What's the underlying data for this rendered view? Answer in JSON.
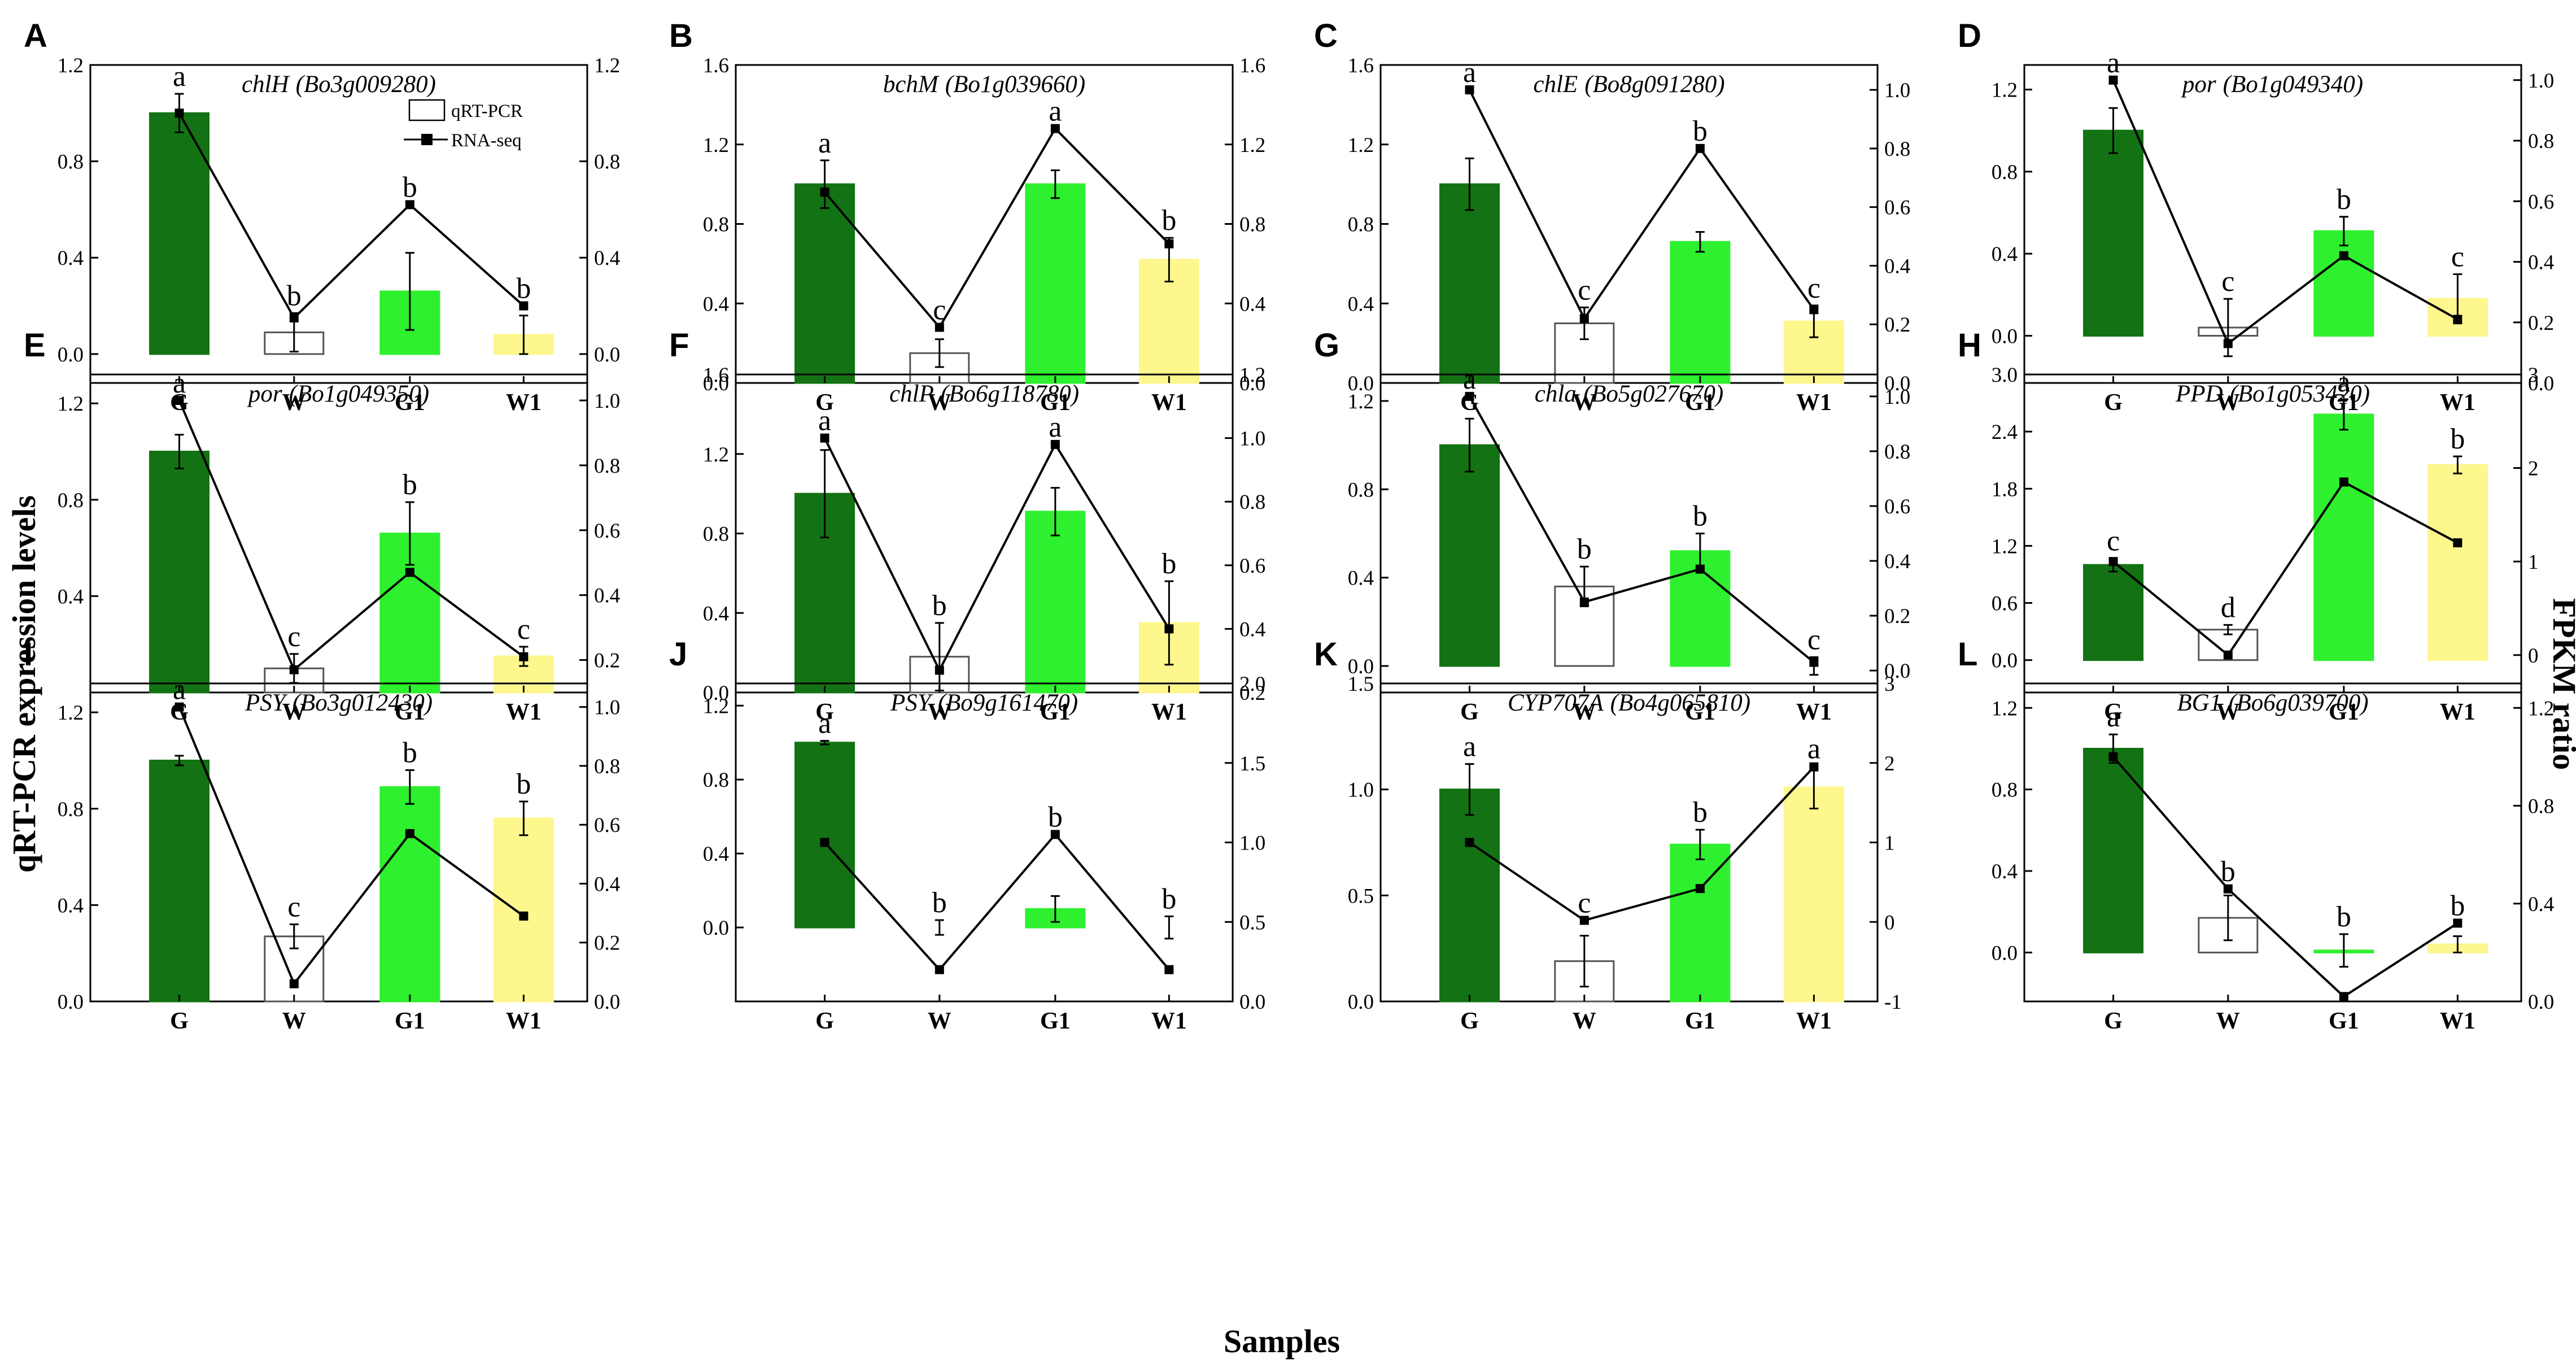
{
  "figure": {
    "shared_ylabel_left": "qRT-PCR expression levels",
    "shared_ylabel_right": "FPKM ratio",
    "shared_xlabel": "Samples",
    "legend": {
      "bar_label": "qRT-PCR",
      "line_label": "RNA-seq"
    },
    "colors": {
      "G": "#137213",
      "W": "#ffffff",
      "G1": "#2ef02e",
      "W1": "#fdf78e"
    }
  },
  "chart_data": [
    {
      "type": "bar",
      "panel": "A",
      "gene": "chlH",
      "gene_id": "(Bo3g009280)",
      "categories": [
        "G",
        "W",
        "G1",
        "W1"
      ],
      "series": [
        {
          "name": "qRT-PCR",
          "values": [
            1.0,
            0.09,
            0.26,
            0.08
          ],
          "errors": [
            0.08,
            0.08,
            0.16,
            0.08
          ],
          "axis": "left"
        },
        {
          "name": "RNA-seq",
          "type": "line",
          "values": [
            1.0,
            0.15,
            0.62,
            0.2
          ],
          "axis": "right"
        }
      ],
      "significance": [
        "a",
        "b",
        "b",
        "b"
      ],
      "ylim_left": [
        -0.12,
        1.2
      ],
      "yticks_left": [
        0.0,
        0.4,
        0.8,
        1.2
      ],
      "yticklabels_left": [
        "0.0",
        "0.4",
        "0.8",
        "1.2"
      ],
      "ylim_right": [
        -0.12,
        1.2
      ],
      "yticks_right": [
        0.0,
        0.4,
        0.8,
        1.2
      ],
      "yticklabels_right": [
        "0.0",
        "0.4",
        "0.8",
        "1.2"
      ],
      "show_legend": true
    },
    {
      "type": "bar",
      "panel": "B",
      "gene": "bchM",
      "gene_id": "(Bo1g039660)",
      "categories": [
        "G",
        "W",
        "G1",
        "W1"
      ],
      "series": [
        {
          "name": "qRT-PCR",
          "values": [
            1.0,
            0.15,
            1.0,
            0.62
          ],
          "errors": [
            0.12,
            0.07,
            0.07,
            0.11
          ],
          "axis": "left"
        },
        {
          "name": "RNA-seq",
          "type": "line",
          "values": [
            0.96,
            0.28,
            1.28,
            0.7
          ],
          "axis": "right"
        }
      ],
      "significance": [
        "a",
        "c",
        "a",
        "b"
      ],
      "ylim_left": [
        0,
        1.6
      ],
      "yticks_left": [
        0.0,
        0.4,
        0.8,
        1.2,
        1.6
      ],
      "yticklabels_left": [
        "0.0",
        "0.4",
        "0.8",
        "1.2",
        "1.6"
      ],
      "ylim_right": [
        0,
        1.6
      ],
      "yticks_right": [
        0.0,
        0.4,
        0.8,
        1.2,
        1.6
      ],
      "yticklabels_right": [
        "0.0",
        "0.4",
        "0.8",
        "1.2",
        "1.6"
      ]
    },
    {
      "type": "bar",
      "panel": "C",
      "gene": "chlE",
      "gene_id": "(Bo8g091280)",
      "categories": [
        "G",
        "W",
        "G1",
        "W1"
      ],
      "series": [
        {
          "name": "qRT-PCR",
          "values": [
            1.0,
            0.3,
            0.71,
            0.31
          ],
          "errors": [
            0.13,
            0.08,
            0.05,
            0.08
          ],
          "axis": "left"
        },
        {
          "name": "RNA-seq",
          "type": "line",
          "values": [
            1.0,
            0.22,
            0.8,
            0.25
          ],
          "axis": "right"
        }
      ],
      "significance": [
        "a",
        "c",
        "b",
        "c"
      ],
      "ylim_left": [
        0,
        1.6
      ],
      "yticks_left": [
        0.0,
        0.4,
        0.8,
        1.2,
        1.6
      ],
      "yticklabels_left": [
        "0.0",
        "0.4",
        "0.8",
        "1.2",
        "1.6"
      ],
      "ylim_right": [
        0,
        1.085
      ],
      "yticks_right": [
        0.0,
        0.2,
        0.4,
        0.6,
        0.8,
        1.0
      ],
      "yticklabels_right": [
        "0.0",
        "0.2",
        "0.4",
        "0.6",
        "0.8",
        "1.0"
      ]
    },
    {
      "type": "bar",
      "panel": "D",
      "gene": "por",
      "gene_id": "(Bo1g049340)",
      "categories": [
        "G",
        "W",
        "G1",
        "W1"
      ],
      "series": [
        {
          "name": "qRT-PCR",
          "values": [
            1.0,
            0.04,
            0.51,
            0.18
          ],
          "errors": [
            0.11,
            0.14,
            0.07,
            0.12
          ],
          "axis": "left"
        },
        {
          "name": "RNA-seq",
          "type": "line",
          "values": [
            1.0,
            0.13,
            0.42,
            0.21
          ],
          "axis": "right"
        }
      ],
      "significance": [
        "a",
        "c",
        "b",
        "c"
      ],
      "ylim_left": [
        -0.23,
        1.32
      ],
      "yticks_left": [
        0.0,
        0.4,
        0.8,
        1.2
      ],
      "yticklabels_left": [
        "0.0",
        "0.4",
        "0.8",
        "1.2"
      ],
      "ylim_right": [
        0,
        1.05
      ],
      "yticks_right": [
        0.0,
        0.2,
        0.4,
        0.6,
        0.8,
        1.0
      ],
      "yticklabels_right": [
        "0.0",
        "0.2",
        "0.4",
        "0.6",
        "0.8",
        "1.0"
      ]
    },
    {
      "type": "bar",
      "panel": "E",
      "gene": "por",
      "gene_id": "(Bo1g049350)",
      "categories": [
        "G",
        "W",
        "G1",
        "W1"
      ],
      "series": [
        {
          "name": "qRT-PCR",
          "values": [
            1.0,
            0.1,
            0.66,
            0.15
          ],
          "errors": [
            0.07,
            0.06,
            0.13,
            0.04
          ],
          "axis": "left"
        },
        {
          "name": "RNA-seq",
          "type": "line",
          "values": [
            1.0,
            0.17,
            0.47,
            0.21
          ],
          "axis": "right"
        }
      ],
      "significance": [
        "a",
        "c",
        "b",
        "c"
      ],
      "ylim_left": [
        0,
        1.32
      ],
      "yticks_left": [
        0.4,
        0.8,
        1.2
      ],
      "yticklabels_left": [
        "0.4",
        "0.8",
        "1.2"
      ],
      "ylim_right": [
        0.1,
        1.08
      ],
      "yticks_right": [
        0.2,
        0.4,
        0.6,
        0.8,
        1.0
      ],
      "yticklabels_right": [
        "0.2",
        "0.4",
        "0.6",
        "0.8",
        "1.0"
      ]
    },
    {
      "type": "bar",
      "panel": "F",
      "gene": "chlP",
      "gene_id": "(Bo6g118780)",
      "categories": [
        "G",
        "W",
        "G1",
        "W1"
      ],
      "series": [
        {
          "name": "qRT-PCR",
          "values": [
            1.0,
            0.18,
            0.91,
            0.35
          ],
          "errors": [
            0.22,
            0.17,
            0.12,
            0.21
          ],
          "axis": "left"
        },
        {
          "name": "RNA-seq",
          "type": "line",
          "values": [
            1.0,
            0.27,
            0.98,
            0.4
          ],
          "axis": "right"
        }
      ],
      "significance": [
        "a",
        "b",
        "a",
        "b"
      ],
      "ylim_left": [
        0,
        1.6
      ],
      "yticks_left": [
        0.0,
        0.4,
        0.8,
        1.2,
        1.6
      ],
      "yticklabels_left": [
        "0.0",
        "0.4",
        "0.8",
        "1.2",
        "1.6"
      ],
      "ylim_right": [
        0.2,
        1.2
      ],
      "yticks_right": [
        0.2,
        0.4,
        0.6,
        0.8,
        1.0,
        1.2
      ],
      "yticklabels_right": [
        "0.2",
        "0.4",
        "0.6",
        "0.8",
        "1.0",
        "1.2"
      ]
    },
    {
      "type": "bar",
      "panel": "G",
      "gene": "chla",
      "gene_id": "(Bo5g027670)",
      "categories": [
        "G",
        "W",
        "G1",
        "W1"
      ],
      "series": [
        {
          "name": "qRT-PCR",
          "values": [
            1.0,
            0.36,
            0.52,
            0.0
          ],
          "errors": [
            0.12,
            0.09,
            0.08,
            0.04
          ],
          "axis": "left"
        },
        {
          "name": "RNA-seq",
          "type": "line",
          "values": [
            1.0,
            0.25,
            0.37,
            0.03
          ],
          "axis": "right"
        }
      ],
      "significance": [
        "a",
        "b",
        "b",
        "c"
      ],
      "ylim_left": [
        -0.12,
        1.32
      ],
      "yticks_left": [
        0.0,
        0.4,
        0.8,
        1.2
      ],
      "yticklabels_left": [
        "0.0",
        "0.4",
        "0.8",
        "1.2"
      ],
      "ylim_right": [
        -0.08,
        1.08
      ],
      "yticks_right": [
        0.0,
        0.2,
        0.4,
        0.6,
        0.8,
        1.0
      ],
      "yticklabels_right": [
        "0.0",
        "0.2",
        "0.4",
        "0.6",
        "0.8",
        "1.0"
      ]
    },
    {
      "type": "bar",
      "panel": "H",
      "gene": "PPD",
      "gene_id": "(Bo1g053420)",
      "categories": [
        "G",
        "W",
        "G1",
        "W1"
      ],
      "series": [
        {
          "name": "qRT-PCR",
          "values": [
            1.0,
            0.32,
            2.58,
            2.05
          ],
          "errors": [
            0.07,
            0.05,
            0.16,
            0.09
          ],
          "axis": "left"
        },
        {
          "name": "RNA-seq",
          "type": "line",
          "values": [
            1.0,
            0.0,
            1.85,
            1.2
          ],
          "axis": "right"
        }
      ],
      "significance": [
        "c",
        "d",
        "a",
        "b"
      ],
      "ylim_left": [
        -0.34,
        3.0
      ],
      "yticks_left": [
        0.0,
        0.6,
        1.2,
        1.8,
        2.4,
        3.0
      ],
      "yticklabels_left": [
        "0.0",
        "0.6",
        "1.2",
        "1.8",
        "2.4",
        "3.0"
      ],
      "ylim_right": [
        -0.4,
        3.0
      ],
      "yticks_right": [
        0,
        1,
        2,
        3
      ],
      "yticklabels_right": [
        "0",
        "1",
        "2",
        "3"
      ]
    },
    {
      "type": "bar",
      "panel": "I",
      "gene": "PSY",
      "gene_id": "(Bo3g012430)",
      "categories": [
        "G",
        "W",
        "G1",
        "W1"
      ],
      "series": [
        {
          "name": "qRT-PCR",
          "values": [
            1.0,
            0.27,
            0.89,
            0.76
          ],
          "errors": [
            0.02,
            0.05,
            0.07,
            0.07
          ],
          "axis": "left"
        },
        {
          "name": "RNA-seq",
          "type": "line",
          "values": [
            1.0,
            0.06,
            0.57,
            0.29
          ],
          "axis": "right"
        }
      ],
      "significance": [
        "a",
        "c",
        "b",
        "b"
      ],
      "ylim_left": [
        0,
        1.32
      ],
      "yticks_left": [
        0.0,
        0.4,
        0.8,
        1.2
      ],
      "yticklabels_left": [
        "0.0",
        "0.4",
        "0.8",
        "1.2"
      ],
      "ylim_right": [
        0,
        1.08
      ],
      "yticks_right": [
        0.0,
        0.2,
        0.4,
        0.6,
        0.8,
        1.0
      ],
      "yticklabels_right": [
        "0.0",
        "0.2",
        "0.4",
        "0.6",
        "0.8",
        "1.0"
      ]
    },
    {
      "type": "bar",
      "panel": "J",
      "gene": "PSY",
      "gene_id": "(Bo9g161470)",
      "categories": [
        "G",
        "W",
        "G1",
        "W1"
      ],
      "series": [
        {
          "name": "qRT-PCR",
          "values": [
            1.0,
            0.0,
            0.1,
            0.0
          ],
          "errors": [
            0.01,
            0.04,
            0.07,
            0.06
          ],
          "axis": "left"
        },
        {
          "name": "RNA-seq",
          "type": "line",
          "values": [
            1.0,
            0.2,
            1.05,
            0.2
          ],
          "axis": "right"
        }
      ],
      "significance": [
        "a",
        "b",
        "b",
        "b"
      ],
      "ylim_left": [
        -0.4,
        1.32
      ],
      "yticks_left": [
        0.0,
        0.4,
        0.8,
        1.2
      ],
      "yticklabels_left": [
        "0.0",
        "0.4",
        "0.8",
        "1.2"
      ],
      "ylim_right": [
        0,
        2.0
      ],
      "yticks_right": [
        0.0,
        0.5,
        1.0,
        1.5,
        2.0
      ],
      "yticklabels_right": [
        "0.0",
        "0.5",
        "1.0",
        "1.5",
        "2.0"
      ]
    },
    {
      "type": "bar",
      "panel": "K",
      "gene": "CYP707A",
      "gene_id": "(Bo4g065810)",
      "categories": [
        "G",
        "W",
        "G1",
        "W1"
      ],
      "series": [
        {
          "name": "qRT-PCR",
          "values": [
            1.0,
            0.19,
            0.74,
            1.01
          ],
          "errors": [
            0.12,
            0.12,
            0.07,
            0.1
          ],
          "axis": "left"
        },
        {
          "name": "RNA-seq",
          "type": "line",
          "values": [
            1.0,
            0.02,
            0.42,
            1.95
          ],
          "axis": "right"
        }
      ],
      "significance": [
        "a",
        "c",
        "b",
        "a"
      ],
      "ylim_left": [
        0,
        1.5
      ],
      "yticks_left": [
        0.0,
        0.5,
        1.0,
        1.5
      ],
      "yticklabels_left": [
        "0.0",
        "0.5",
        "1.0",
        "1.5"
      ],
      "ylim_right": [
        -1,
        3
      ],
      "yticks_right": [
        -1,
        0,
        1,
        2,
        3
      ],
      "yticklabels_right": [
        "-1",
        "0",
        "1",
        "2",
        "3"
      ]
    },
    {
      "type": "bar",
      "panel": "L",
      "gene": "BG1",
      "gene_id": "(Bo6g039700)",
      "categories": [
        "G",
        "W",
        "G1",
        "W1"
      ],
      "series": [
        {
          "name": "qRT-PCR",
          "values": [
            1.0,
            0.17,
            0.01,
            0.04
          ],
          "errors": [
            0.07,
            0.11,
            0.08,
            0.04
          ],
          "axis": "left"
        },
        {
          "name": "RNA-seq",
          "type": "line",
          "values": [
            1.0,
            0.46,
            0.02,
            0.32
          ],
          "axis": "right"
        }
      ],
      "significance": [
        "a",
        "b",
        "b",
        "b"
      ],
      "ylim_left": [
        -0.24,
        1.32
      ],
      "yticks_left": [
        0.0,
        0.4,
        0.8,
        1.2
      ],
      "yticklabels_left": [
        "0.0",
        "0.4",
        "0.8",
        "1.2"
      ],
      "ylim_right": [
        0,
        1.3
      ],
      "yticks_right": [
        0.0,
        0.4,
        0.8,
        1.2
      ],
      "yticklabels_right": [
        "0.0",
        "0.4",
        "0.8",
        "1.2"
      ]
    }
  ]
}
